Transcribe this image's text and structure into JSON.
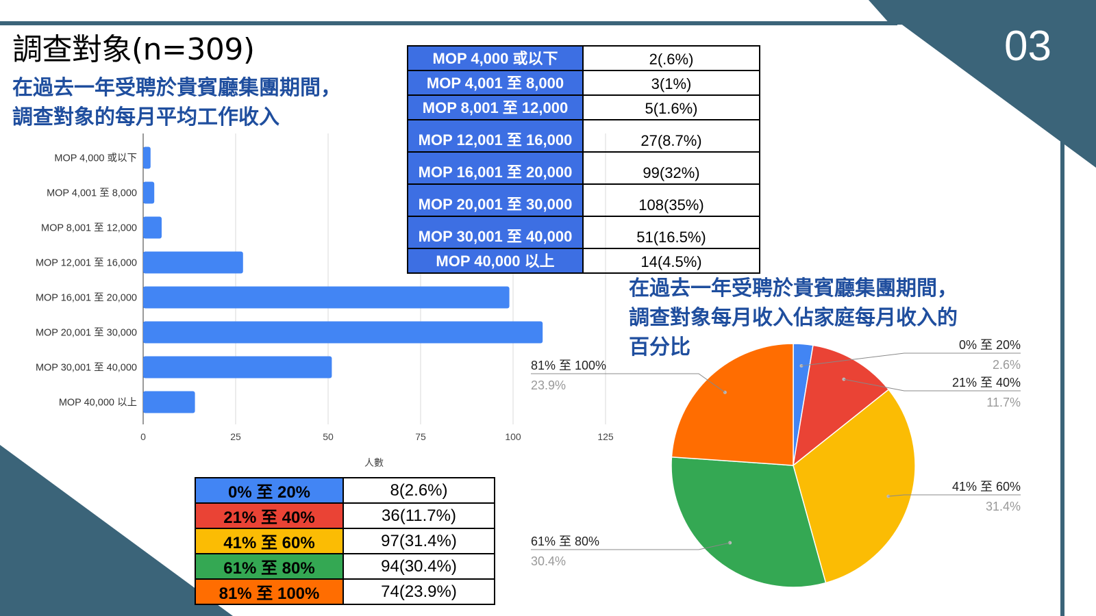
{
  "slide": {
    "title": "調查對象(n=309)",
    "number": "03",
    "colors": {
      "dark_teal": "#3b6479",
      "blue_heading": "#1f4e9e",
      "bar_blue": "#4285f4",
      "table_header_blue": "#3d6fe3"
    }
  },
  "income_heading": {
    "line1": "在過去一年受聘於貴賓廳集團期間，",
    "line2": "調查對象的每月平均工作收入"
  },
  "pct_heading": {
    "line1": "在過去一年受聘於貴賓廳集團期間，",
    "line2": "調查對象每月收入佔家庭每月收入的",
    "line3": "百分比"
  },
  "income_table": {
    "rows": [
      {
        "label": "MOP 4,000 或以下",
        "value": "2(.6%)"
      },
      {
        "label": "MOP 4,001 至 8,000",
        "value": "3(1%)"
      },
      {
        "label": "MOP 8,001 至 12,000",
        "value": "5(1.6%)"
      },
      {
        "label": "MOP 12,001 至 16,000",
        "value": "27(8.7%)"
      },
      {
        "label": "MOP 16,001 至 20,000",
        "value": "99(32%)"
      },
      {
        "label": "MOP 20,001 至 30,000",
        "value": "108(35%)"
      },
      {
        "label": "MOP 30,001 至 40,000",
        "value": "51(16.5%)"
      },
      {
        "label": "MOP 40,000 以上",
        "value": "14(4.5%)"
      }
    ]
  },
  "pct_table": {
    "rows": [
      {
        "label": "0% 至 20%",
        "value": "8(2.6%)",
        "color": "#4285f4"
      },
      {
        "label": "21% 至 40%",
        "value": "36(11.7%)",
        "color": "#ea4335"
      },
      {
        "label": "41% 至 60%",
        "value": "97(31.4%)",
        "color": "#fbbc04"
      },
      {
        "label": "61% 至 80%",
        "value": "94(30.4%)",
        "color": "#34a853"
      },
      {
        "label": "81% 至 100%",
        "value": "74(23.9%)",
        "color": "#ff6d01"
      }
    ]
  },
  "chart_data": [
    {
      "type": "bar",
      "orientation": "horizontal",
      "categories": [
        "MOP 4,000 或以下",
        "MOP 4,001 至 8,000",
        "MOP 8,001 至 12,000",
        "MOP 12,001 至 16,000",
        "MOP 16,001 至 20,000",
        "MOP 20,001 至 30,000",
        "MOP 30,001 至 40,000",
        "MOP 40,000 以上"
      ],
      "values": [
        2,
        3,
        5,
        27,
        99,
        108,
        51,
        14
      ],
      "xlabel": "人數",
      "xticks": [
        0,
        25,
        50,
        75,
        100,
        125
      ],
      "xlim": [
        0,
        125
      ],
      "grid": true,
      "color": "#4285f4"
    },
    {
      "type": "pie",
      "labels": [
        "0% 至 20%",
        "21% 至 40%",
        "41% 至 60%",
        "61% 至 80%",
        "81% 至 100%"
      ],
      "values": [
        2.6,
        11.7,
        31.4,
        30.4,
        23.9
      ],
      "value_labels": [
        "2.6%",
        "11.7%",
        "31.4%",
        "30.4%",
        "23.9%"
      ],
      "colors": [
        "#4285f4",
        "#ea4335",
        "#fbbc04",
        "#34a853",
        "#ff6d01"
      ]
    }
  ]
}
